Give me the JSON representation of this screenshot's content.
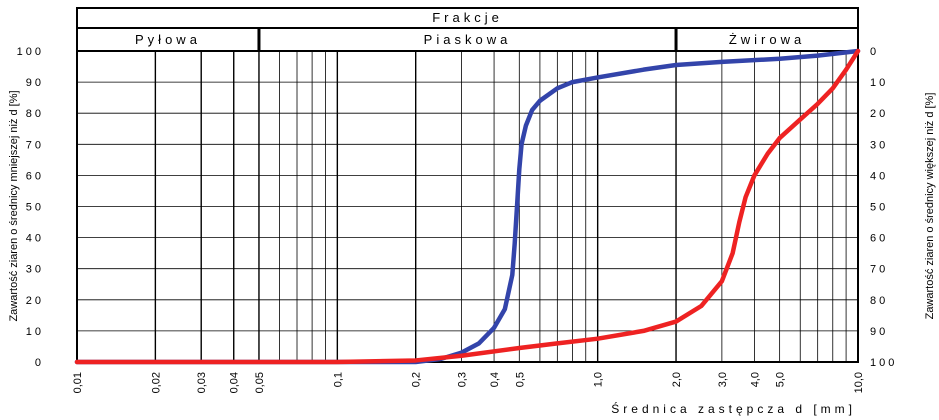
{
  "chart_data": {
    "type": "line",
    "x_scale": "log",
    "xlim": [
      0.01,
      10.0
    ],
    "ylim": [
      0,
      100
    ],
    "y2lim": [
      100,
      0
    ],
    "grid": true,
    "legend": "none",
    "header": {
      "title": "Frakcje",
      "fractions": [
        "Pyłowa",
        "Piaskowa",
        "Żwirowa"
      ],
      "boundaries": [
        0.05,
        2.0
      ]
    },
    "xlabel": "Średnica zastępcza d [mm]",
    "ylabel": "Zawartość ziaren o średnicy mniejszej niż d [%]",
    "y2label": "Zawartość ziaren o średnicy większej niż d [%]",
    "x_tick_labels": [
      {
        "value": 0.01,
        "label": "0,01"
      },
      {
        "value": 0.02,
        "label": "0,02"
      },
      {
        "value": 0.03,
        "label": "0,03"
      },
      {
        "value": 0.04,
        "label": "0,04"
      },
      {
        "value": 0.05,
        "label": "0,05"
      },
      {
        "value": 0.1,
        "label": "0,1"
      },
      {
        "value": 0.2,
        "label": "0,2"
      },
      {
        "value": 0.3,
        "label": "0,3"
      },
      {
        "value": 0.4,
        "label": "0,4"
      },
      {
        "value": 0.5,
        "label": "0,5"
      },
      {
        "value": 1.0,
        "label": "1,0"
      },
      {
        "value": 2.0,
        "label": "2,0"
      },
      {
        "value": 3.0,
        "label": "3,0"
      },
      {
        "value": 4.0,
        "label": "4,0"
      },
      {
        "value": 5.0,
        "label": "5,0"
      },
      {
        "value": 10.0,
        "label": "10,0"
      }
    ],
    "y_tick_labels": [
      "0",
      "10",
      "20",
      "30",
      "40",
      "50",
      "60",
      "70",
      "80",
      "90",
      "100"
    ],
    "y2_tick_labels": [
      "100",
      "90",
      "80",
      "70",
      "60",
      "50",
      "40",
      "30",
      "20",
      "10",
      "0"
    ],
    "series": [
      {
        "color": "#3344aa",
        "x": [
          0.01,
          0.2,
          0.25,
          0.3,
          0.35,
          0.4,
          0.44,
          0.47,
          0.48,
          0.49,
          0.5,
          0.51,
          0.53,
          0.56,
          0.6,
          0.7,
          0.8,
          1.0,
          1.5,
          2.0,
          3.0,
          5.0,
          7.0,
          10.0
        ],
        "y": [
          0,
          0,
          1,
          3,
          6,
          11,
          17,
          28,
          38,
          50,
          62,
          70,
          76,
          81,
          84,
          88,
          90,
          91.5,
          94,
          95.5,
          96.5,
          97.5,
          98.5,
          100
        ]
      },
      {
        "color": "#ee2222",
        "x": [
          0.01,
          0.1,
          0.2,
          0.3,
          0.5,
          0.7,
          1.0,
          1.5,
          2.0,
          2.5,
          3.0,
          3.3,
          3.5,
          3.7,
          4.0,
          4.5,
          5.0,
          6.0,
          7.0,
          8.0,
          9.0,
          10.0
        ],
        "y": [
          0,
          0,
          0.5,
          2,
          4.5,
          6,
          7.5,
          10,
          13,
          18,
          26,
          35,
          45,
          53,
          60,
          67,
          72,
          78,
          83,
          88,
          94,
          100
        ]
      }
    ]
  }
}
